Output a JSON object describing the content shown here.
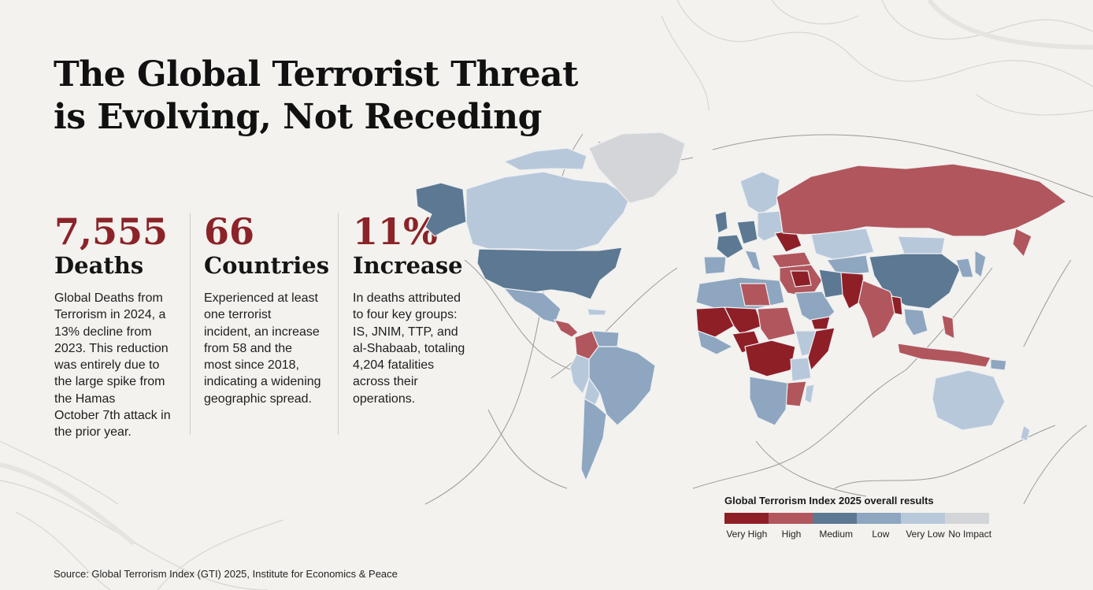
{
  "title": {
    "line1": "The Global Terrorist Threat",
    "line2": "is Evolving, Not Receding"
  },
  "stats": [
    {
      "value": "7,555",
      "label": "Deaths",
      "lines": [
        "Global Deaths from",
        "Terrorism in 2024, a",
        "13% decline from",
        "2023. This reduction",
        "was entirely due to",
        "the large spike from",
        "the Hamas",
        "October 7th attack in",
        "the prior year."
      ]
    },
    {
      "value": "66",
      "label": "Countries",
      "lines": [
        "Experienced at least",
        "one terrorist",
        "incident, an increase",
        "from 58 and the",
        "most since 2018,",
        "indicating a widening",
        "geographic spread."
      ]
    },
    {
      "value": "11%",
      "label": "Increase",
      "lines": [
        "In deaths attributed",
        "to four key groups:",
        "IS, JNIM, TTP, and",
        "al-Shabaab, totaling",
        "4,204 fatalities",
        "across their",
        "operations."
      ]
    }
  ],
  "legend": {
    "title": "Global Terrorism Index 2025 overall results",
    "items": [
      {
        "label": "Very High",
        "color": "#8e1f27"
      },
      {
        "label": "High",
        "color": "#b1565c"
      },
      {
        "label": "Medium",
        "color": "#5c7892"
      },
      {
        "label": "Low",
        "color": "#8ea6bf"
      },
      {
        "label": "Very Low",
        "color": "#b8c8db"
      },
      {
        "label": "No Impact",
        "color": "#d4d5d8"
      }
    ]
  },
  "source": "Source: Global Terrorism Index (GTI) 2025, Institute for Economics & Peace",
  "colors": {
    "accent": "#8b2328",
    "background": "#f3f2ee"
  }
}
